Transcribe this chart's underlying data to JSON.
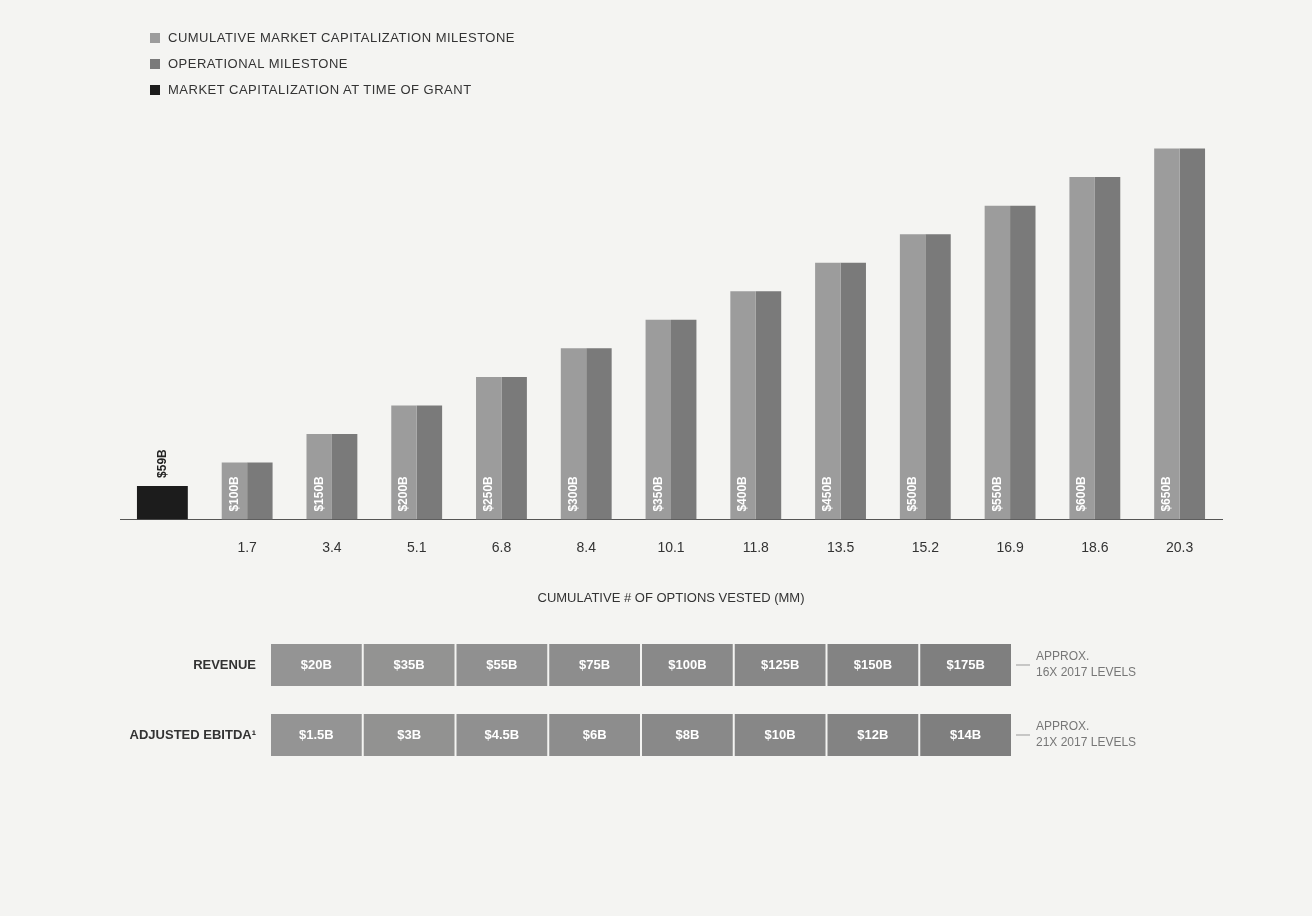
{
  "chart_data": [
    {
      "type": "bar",
      "xlabel": "CUMULATIVE # OF OPTIONS VESTED (MM)",
      "categories": [
        null,
        "1.7",
        "3.4",
        "5.1",
        "6.8",
        "8.4",
        "10.1",
        "11.8",
        "13.5",
        "15.2",
        "16.9",
        "18.6",
        "20.3"
      ],
      "series": [
        {
          "name": "CUMULATIVE MARKET CAPITALIZATION MILESTONE",
          "color": "#9c9c9c",
          "values": [
            null,
            100,
            150,
            200,
            250,
            300,
            350,
            400,
            450,
            500,
            550,
            600,
            650
          ],
          "value_labels": [
            null,
            "$100B",
            "$150B",
            "$200B",
            "$250B",
            "$300B",
            "$350B",
            "$400B",
            "$450B",
            "$500B",
            "$550B",
            "$600B",
            "$650B"
          ]
        },
        {
          "name": "OPERATIONAL MILESTONE",
          "color": "#7a7a7a",
          "values": [
            null,
            100,
            150,
            200,
            250,
            300,
            350,
            400,
            450,
            500,
            550,
            600,
            650
          ]
        },
        {
          "name": "MARKET CAPITALIZATION AT TIME OF GRANT",
          "color": "#1c1c1c",
          "values": [
            59,
            null,
            null,
            null,
            null,
            null,
            null,
            null,
            null,
            null,
            null,
            null,
            null
          ],
          "value_labels": [
            "$59B",
            null,
            null,
            null,
            null,
            null,
            null,
            null,
            null,
            null,
            null,
            null,
            null
          ]
        }
      ],
      "legend": "top left",
      "grid": false
    },
    {
      "type": "heatmap",
      "categories": [
        null,
        null,
        null,
        null,
        null,
        null,
        null,
        null
      ],
      "y_categories": [
        "REVENUE",
        "ADJUSTED EBITDA¹"
      ],
      "y2_categories": [
        "APPROX. 16X 2017 LEVELS",
        "APPROX. 21X 2017 LEVELS"
      ],
      "color": "#7f7f7f",
      "cells": [
        [
          20,
          35,
          55,
          75,
          100,
          125,
          150,
          175
        ],
        [
          1.5,
          3,
          4.5,
          6,
          8,
          10,
          12,
          14
        ]
      ],
      "cell_labels": [
        [
          "$20B",
          "$35B",
          "$55B",
          "$75B",
          "$100B",
          "$125B",
          "$150B",
          "$175B"
        ],
        [
          "$1.5B",
          "$3B",
          "$4.5B",
          "$6B",
          "$8B",
          "$10B",
          "$12B",
          "$14B"
        ]
      ]
    }
  ]
}
